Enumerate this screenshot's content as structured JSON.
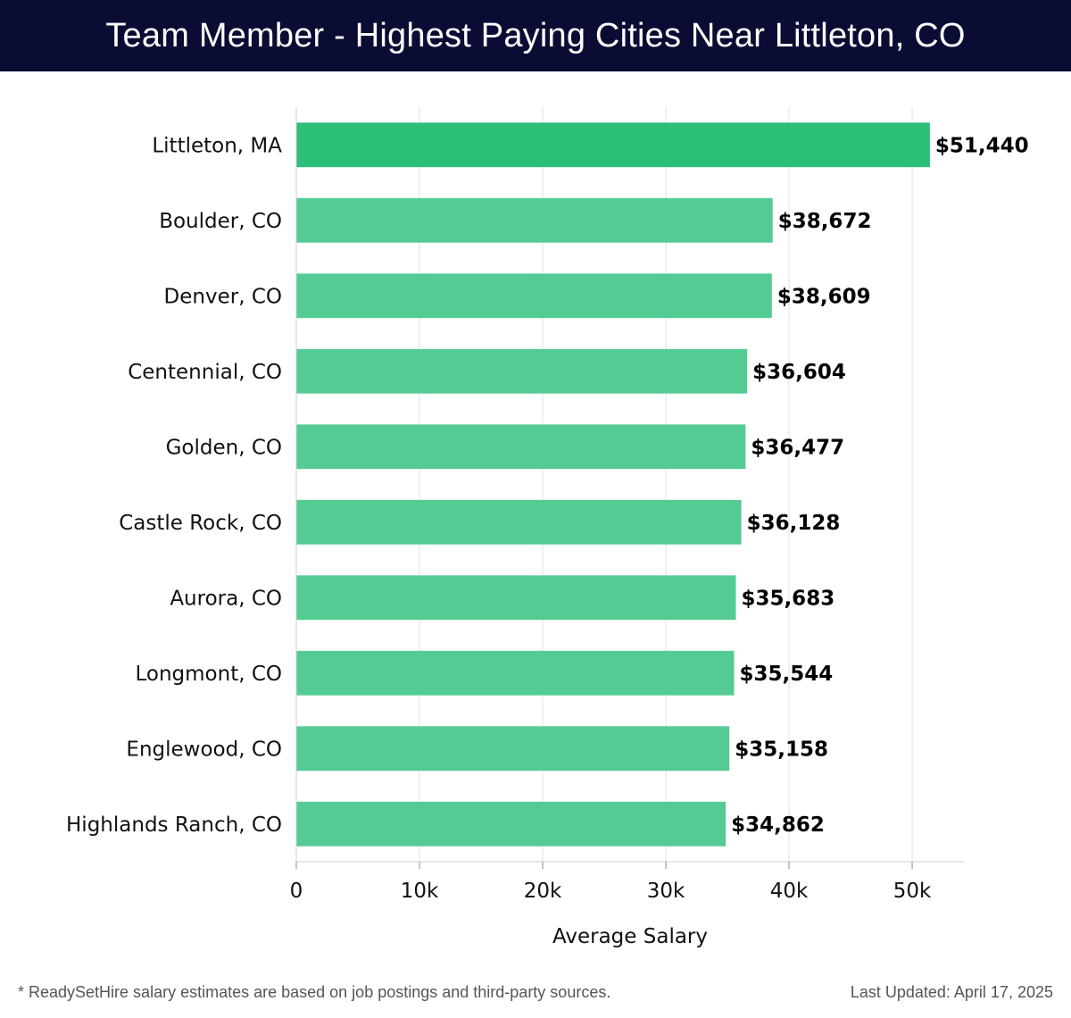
{
  "header": {
    "title": "Team Member - Highest Paying Cities Near Littleton, CO"
  },
  "chart_data": {
    "type": "bar",
    "orientation": "horizontal",
    "title": "Team Member - Highest Paying Cities Near Littleton, CO",
    "xlabel": "Average Salary",
    "ylabel": "",
    "categories": [
      "Littleton, MA",
      "Boulder, CO",
      "Denver, CO",
      "Centennial, CO",
      "Golden, CO",
      "Castle Rock, CO",
      "Aurora, CO",
      "Longmont, CO",
      "Englewood, CO",
      "Highlands Ranch, CO"
    ],
    "values": [
      51440,
      38672,
      38609,
      36604,
      36477,
      36128,
      35683,
      35544,
      35158,
      34862
    ],
    "value_labels": [
      "$51,440",
      "$38,672",
      "$38,609",
      "$36,604",
      "$36,477",
      "$36,128",
      "$35,683",
      "$35,544",
      "$35,158",
      "$34,862"
    ],
    "xlim": [
      0,
      54200
    ],
    "xticks": [
      0,
      10000,
      20000,
      30000,
      40000,
      50000
    ],
    "xtick_labels": [
      "0",
      "10k",
      "20k",
      "30k",
      "40k",
      "50k"
    ],
    "grid": true,
    "colors": {
      "highlight": "#2bbf78",
      "bar": "#55cb94",
      "grid": "#e2e2e2",
      "axis": "#cccccc"
    }
  },
  "footer": {
    "note": "* ReadySetHire salary estimates are based on job postings and third-party sources.",
    "updated": "Last Updated: April 17, 2025"
  }
}
